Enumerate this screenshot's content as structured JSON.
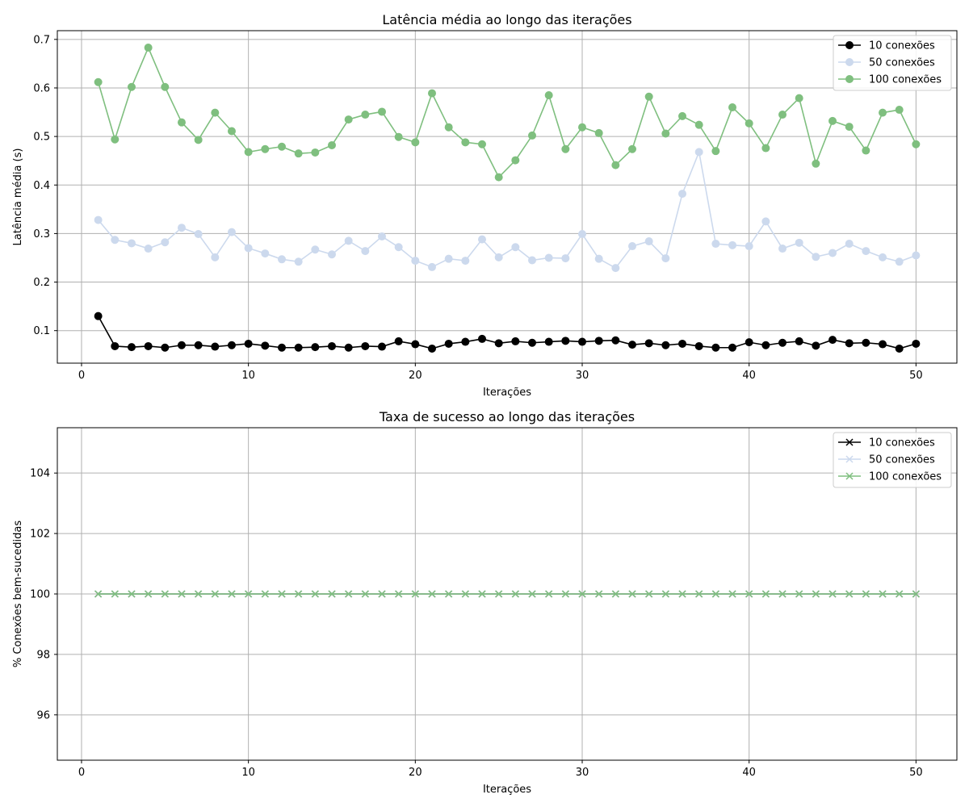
{
  "chart_data": [
    {
      "type": "line",
      "title": "Latência média ao longo das iterações",
      "xlabel": "Iterações",
      "ylabel": "Latência média (s)",
      "xlim": [
        -1.45,
        52.45
      ],
      "ylim": [
        0.033,
        0.718
      ],
      "xticks": [
        0,
        10,
        20,
        30,
        40,
        50
      ],
      "yticks": [
        0.1,
        0.2,
        0.3,
        0.4,
        0.5,
        0.6,
        0.7
      ],
      "grid": true,
      "legend_position": "top-right",
      "marker": "circle",
      "x": [
        1,
        2,
        3,
        4,
        5,
        6,
        7,
        8,
        9,
        10,
        11,
        12,
        13,
        14,
        15,
        16,
        17,
        18,
        19,
        20,
        21,
        22,
        23,
        24,
        25,
        26,
        27,
        28,
        29,
        30,
        31,
        32,
        33,
        34,
        35,
        36,
        37,
        38,
        39,
        40,
        41,
        42,
        43,
        44,
        45,
        46,
        47,
        48,
        49,
        50
      ],
      "series": [
        {
          "name": "10 conexões",
          "color": "#000000",
          "values": [
            0.13,
            0.068,
            0.066,
            0.068,
            0.065,
            0.07,
            0.07,
            0.067,
            0.07,
            0.073,
            0.069,
            0.065,
            0.065,
            0.066,
            0.068,
            0.065,
            0.068,
            0.067,
            0.078,
            0.072,
            0.063,
            0.073,
            0.077,
            0.083,
            0.074,
            0.078,
            0.075,
            0.077,
            0.079,
            0.077,
            0.079,
            0.08,
            0.071,
            0.074,
            0.07,
            0.073,
            0.068,
            0.065,
            0.065,
            0.076,
            0.07,
            0.075,
            0.078,
            0.069,
            0.081,
            0.074,
            0.075,
            0.072,
            0.063,
            0.073
          ]
        },
        {
          "name": "50 conexões",
          "color": "#ccd9ed",
          "values": [
            0.328,
            0.287,
            0.28,
            0.269,
            0.282,
            0.312,
            0.299,
            0.251,
            0.303,
            0.27,
            0.259,
            0.247,
            0.242,
            0.267,
            0.257,
            0.285,
            0.264,
            0.294,
            0.272,
            0.244,
            0.231,
            0.248,
            0.244,
            0.288,
            0.251,
            0.272,
            0.245,
            0.25,
            0.249,
            0.299,
            0.248,
            0.229,
            0.274,
            0.284,
            0.249,
            0.382,
            0.468,
            0.279,
            0.276,
            0.274,
            0.325,
            0.269,
            0.281,
            0.252,
            0.26,
            0.279,
            0.264,
            0.251,
            0.242,
            0.255
          ]
        },
        {
          "name": "100 conexões",
          "color": "#7fbf7f",
          "values": [
            0.612,
            0.494,
            0.602,
            0.683,
            0.602,
            0.529,
            0.493,
            0.549,
            0.511,
            0.468,
            0.474,
            0.479,
            0.465,
            0.467,
            0.482,
            0.535,
            0.545,
            0.551,
            0.499,
            0.488,
            0.589,
            0.519,
            0.488,
            0.484,
            0.416,
            0.451,
            0.502,
            0.585,
            0.474,
            0.519,
            0.507,
            0.441,
            0.474,
            0.582,
            0.506,
            0.542,
            0.524,
            0.47,
            0.56,
            0.527,
            0.476,
            0.545,
            0.579,
            0.444,
            0.532,
            0.52,
            0.471,
            0.549,
            0.555,
            0.484
          ]
        }
      ]
    },
    {
      "type": "line",
      "title": "Taxa de sucesso ao longo das iterações",
      "xlabel": "Iterações",
      "ylabel": "% Conexões bem-sucedidas",
      "xlim": [
        -1.45,
        52.45
      ],
      "ylim": [
        94.5,
        105.5
      ],
      "xticks": [
        0,
        10,
        20,
        30,
        40,
        50
      ],
      "yticks": [
        96,
        98,
        100,
        102,
        104
      ],
      "grid": true,
      "legend_position": "top-right",
      "marker": "x",
      "x": [
        1,
        2,
        3,
        4,
        5,
        6,
        7,
        8,
        9,
        10,
        11,
        12,
        13,
        14,
        15,
        16,
        17,
        18,
        19,
        20,
        21,
        22,
        23,
        24,
        25,
        26,
        27,
        28,
        29,
        30,
        31,
        32,
        33,
        34,
        35,
        36,
        37,
        38,
        39,
        40,
        41,
        42,
        43,
        44,
        45,
        46,
        47,
        48,
        49,
        50
      ],
      "series": [
        {
          "name": "10 conexões",
          "color": "#000000",
          "values": [
            100,
            100,
            100,
            100,
            100,
            100,
            100,
            100,
            100,
            100,
            100,
            100,
            100,
            100,
            100,
            100,
            100,
            100,
            100,
            100,
            100,
            100,
            100,
            100,
            100,
            100,
            100,
            100,
            100,
            100,
            100,
            100,
            100,
            100,
            100,
            100,
            100,
            100,
            100,
            100,
            100,
            100,
            100,
            100,
            100,
            100,
            100,
            100,
            100,
            100
          ]
        },
        {
          "name": "50 conexões",
          "color": "#ccd9ed",
          "values": [
            100,
            100,
            100,
            100,
            100,
            100,
            100,
            100,
            100,
            100,
            100,
            100,
            100,
            100,
            100,
            100,
            100,
            100,
            100,
            100,
            100,
            100,
            100,
            100,
            100,
            100,
            100,
            100,
            100,
            100,
            100,
            100,
            100,
            100,
            100,
            100,
            100,
            100,
            100,
            100,
            100,
            100,
            100,
            100,
            100,
            100,
            100,
            100,
            100,
            100
          ]
        },
        {
          "name": "100 conexões",
          "color": "#7fbf7f",
          "values": [
            100,
            100,
            100,
            100,
            100,
            100,
            100,
            100,
            100,
            100,
            100,
            100,
            100,
            100,
            100,
            100,
            100,
            100,
            100,
            100,
            100,
            100,
            100,
            100,
            100,
            100,
            100,
            100,
            100,
            100,
            100,
            100,
            100,
            100,
            100,
            100,
            100,
            100,
            100,
            100,
            100,
            100,
            100,
            100,
            100,
            100,
            100,
            100,
            100,
            100
          ]
        }
      ]
    }
  ]
}
